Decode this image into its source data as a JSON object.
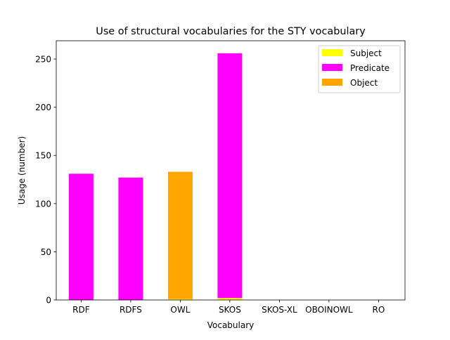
{
  "chart_data": {
    "type": "bar",
    "stacked": true,
    "title": "Use of structural vocabularies for the STY vocabulary",
    "xlabel": "Vocabulary",
    "ylabel": "Usage (number)",
    "categories": [
      "RDF",
      "RDFS",
      "OWL",
      "SKOS",
      "SKOS-XL",
      "OBOINOWL",
      "RO"
    ],
    "series": [
      {
        "name": "Subject",
        "color": "#ffff00",
        "values": [
          0,
          0,
          1,
          2,
          0,
          0,
          0
        ]
      },
      {
        "name": "Predicate",
        "color": "#ff00ff",
        "values": [
          131,
          127,
          0,
          254,
          0,
          0,
          0
        ]
      },
      {
        "name": "Object",
        "color": "#ffa500",
        "values": [
          0,
          0,
          132,
          0,
          0,
          0,
          0
        ]
      }
    ],
    "ylim": [
      0,
      269
    ],
    "yticks": [
      "0",
      "50",
      "100",
      "150",
      "200",
      "250"
    ],
    "legend": "top-right",
    "grid": false
  }
}
